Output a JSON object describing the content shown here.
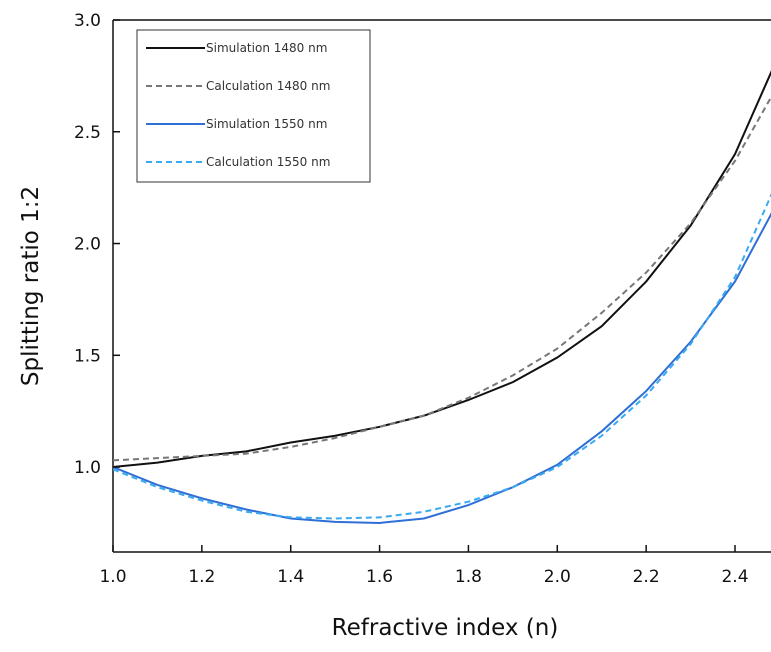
{
  "chart_data": {
    "type": "line",
    "x_label": "Refractive index (n)",
    "y_label": "Splitting ratio 1:2",
    "x": [
      1.0,
      1.1,
      1.2,
      1.3,
      1.4,
      1.5,
      1.6,
      1.7,
      1.8,
      1.9,
      2.0,
      2.1,
      2.2,
      2.3,
      2.4,
      2.5
    ],
    "series": [
      {
        "name": "Simulation 1480 nm",
        "color": "#111111",
        "dash": "solid",
        "values": [
          1.0,
          1.02,
          1.05,
          1.07,
          1.11,
          1.14,
          1.18,
          1.23,
          1.3,
          1.38,
          1.49,
          1.63,
          1.83,
          2.08,
          2.4,
          2.85
        ]
      },
      {
        "name": "Calculation 1480 nm",
        "color": "#777777",
        "dash": "dashed",
        "values": [
          1.03,
          1.04,
          1.05,
          1.06,
          1.09,
          1.13,
          1.18,
          1.23,
          1.31,
          1.41,
          1.53,
          1.69,
          1.87,
          2.09,
          2.37,
          2.72
        ]
      },
      {
        "name": "Simulation 1550 nm",
        "color": "#2f6fd6",
        "dash": "solid",
        "values": [
          1.0,
          0.92,
          0.86,
          0.81,
          0.77,
          0.755,
          0.75,
          0.77,
          0.83,
          0.91,
          1.01,
          1.16,
          1.34,
          1.56,
          1.83,
          2.2
        ]
      },
      {
        "name": "Calculation 1550 nm",
        "color": "#3aaaf0",
        "dash": "dashed",
        "values": [
          0.99,
          0.91,
          0.85,
          0.8,
          0.775,
          0.77,
          0.775,
          0.8,
          0.845,
          0.91,
          1.0,
          1.14,
          1.32,
          1.55,
          1.85,
          2.3
        ]
      }
    ],
    "xlim": [
      1.0,
      2.48
    ],
    "ylim": [
      0.62,
      3.0
    ],
    "xticks": [
      {
        "value": 1.0,
        "label": "1.0"
      },
      {
        "value": 1.2,
        "label": "1.2"
      },
      {
        "value": 1.4,
        "label": "1.4"
      },
      {
        "value": 1.6,
        "label": "1.6"
      },
      {
        "value": 1.8,
        "label": "1.8"
      },
      {
        "value": 2.0,
        "label": "2.0"
      },
      {
        "value": 2.2,
        "label": "2.2"
      },
      {
        "value": 2.4,
        "label": "2.4"
      }
    ],
    "yticks": [
      {
        "value": 1.0,
        "label": "1.0"
      },
      {
        "value": 1.5,
        "label": "1.5"
      },
      {
        "value": 2.0,
        "label": "2.0"
      },
      {
        "value": 2.5,
        "label": "2.5"
      },
      {
        "value": 3.0,
        "label": "3.0"
      }
    ],
    "legend": "upper left"
  }
}
